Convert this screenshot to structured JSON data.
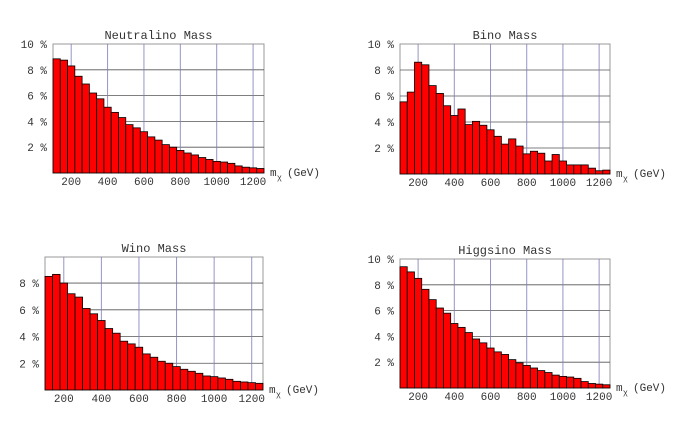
{
  "chart_data": [
    {
      "type": "bar",
      "title": "Neutralino Mass",
      "xlabel": "m",
      "xlabel_sub": "χ",
      "xlabel_unit": "(GeV)",
      "bin_start": 100,
      "bin_width": 40,
      "xlim": [
        100,
        1260
      ],
      "ylim": [
        0,
        10
      ],
      "x_ticks": [
        200,
        400,
        600,
        800,
        1000,
        1200
      ],
      "y_ticks": [
        2,
        4,
        6,
        8,
        10
      ],
      "y_tick_labels": [
        "2 %",
        "4 %",
        "6 %",
        "8 %",
        "10 %"
      ],
      "grid": true,
      "values": [
        8.85,
        8.75,
        8.3,
        7.5,
        6.9,
        6.2,
        5.75,
        5.1,
        4.7,
        4.3,
        3.75,
        3.5,
        3.2,
        2.8,
        2.55,
        2.2,
        2.0,
        1.75,
        1.55,
        1.4,
        1.2,
        1.05,
        0.9,
        0.85,
        0.75,
        0.55,
        0.45,
        0.4,
        0.35
      ]
    },
    {
      "type": "bar",
      "title": "Bino Mass",
      "xlabel": "m",
      "xlabel_sub": "χ",
      "xlabel_unit": "(GeV)",
      "bin_start": 100,
      "bin_width": 40,
      "xlim": [
        100,
        1260
      ],
      "ylim": [
        0,
        10
      ],
      "x_ticks": [
        200,
        400,
        600,
        800,
        1000,
        1200
      ],
      "y_ticks": [
        2,
        4,
        6,
        8,
        10
      ],
      "y_tick_labels": [
        "2 %",
        "4 %",
        "6 %",
        "8 %",
        "10 %"
      ],
      "grid": true,
      "values": [
        5.55,
        6.3,
        8.6,
        8.4,
        6.8,
        6.2,
        5.25,
        4.5,
        5.0,
        3.8,
        4.05,
        3.75,
        3.4,
        2.9,
        2.3,
        2.7,
        2.15,
        1.55,
        1.75,
        1.6,
        1.0,
        1.5,
        1.0,
        0.7,
        0.7,
        0.7,
        0.45,
        0.25,
        0.3
      ]
    },
    {
      "type": "bar",
      "title": "Wino Mass",
      "xlabel": "m",
      "xlabel_sub": "χ",
      "xlabel_unit": "(GeV)",
      "bin_start": 100,
      "bin_width": 40,
      "xlim": [
        100,
        1260
      ],
      "ylim": [
        0,
        9.95
      ],
      "x_ticks": [
        200,
        400,
        600,
        800,
        1000,
        1200
      ],
      "y_ticks": [
        2,
        4,
        6,
        8
      ],
      "y_tick_labels": [
        "2 %",
        "4 %",
        "6 %",
        "8 %"
      ],
      "grid": true,
      "values": [
        8.5,
        8.65,
        8.0,
        7.2,
        6.95,
        6.1,
        5.7,
        5.2,
        4.6,
        4.25,
        3.65,
        3.45,
        3.2,
        2.7,
        2.45,
        2.15,
        2.0,
        1.75,
        1.55,
        1.4,
        1.25,
        1.05,
        1.0,
        0.9,
        0.8,
        0.65,
        0.6,
        0.55,
        0.5
      ]
    },
    {
      "type": "bar",
      "title": "Higgsino Mass",
      "xlabel": "m",
      "xlabel_sub": "χ",
      "xlabel_unit": "(GeV)",
      "bin_start": 100,
      "bin_width": 40,
      "xlim": [
        100,
        1260
      ],
      "ylim": [
        0,
        10
      ],
      "x_ticks": [
        200,
        400,
        600,
        800,
        1000,
        1200
      ],
      "y_ticks": [
        2,
        4,
        6,
        8,
        10
      ],
      "y_tick_labels": [
        "2 %",
        "4 %",
        "6 %",
        "8 %",
        "10 %"
      ],
      "grid": true,
      "values": [
        9.4,
        9.0,
        8.5,
        7.65,
        6.85,
        6.2,
        5.8,
        5.0,
        4.7,
        4.3,
        3.8,
        3.5,
        3.1,
        2.8,
        2.6,
        2.2,
        1.95,
        1.75,
        1.55,
        1.35,
        1.2,
        1.0,
        0.9,
        0.85,
        0.75,
        0.5,
        0.35,
        0.3,
        0.25
      ]
    }
  ],
  "colors": {
    "bar": "#ff0000",
    "bar_edge": "#000000",
    "vgrid": "#7a7ab8",
    "hgrid": "#555555"
  }
}
